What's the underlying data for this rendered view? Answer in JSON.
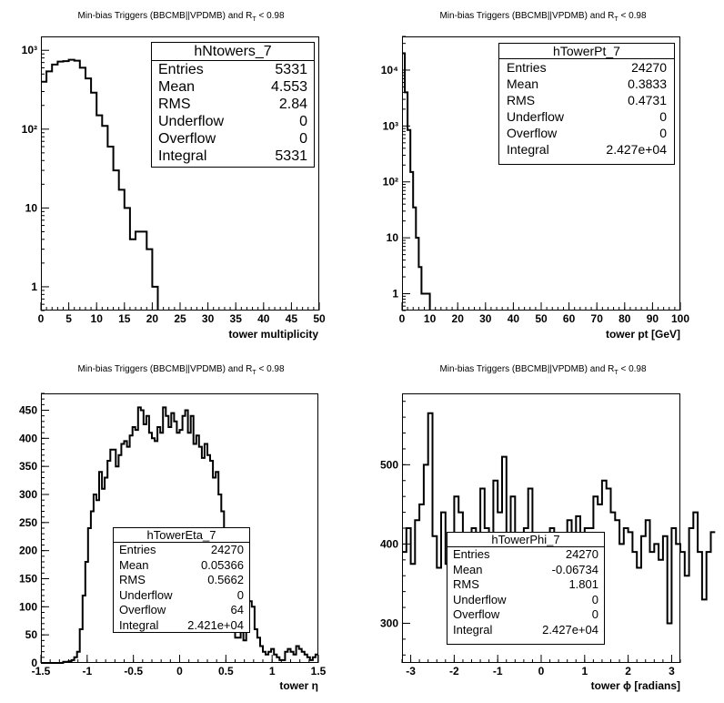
{
  "pads": [
    {
      "title": "Min-bias Triggers (BBCMB||VPDMB) and R",
      "title_sub": "T",
      "title_tail": " < 0.98",
      "xlabel": "tower multiplicity",
      "stats": {
        "name": "hNtowers_7",
        "rows": [
          {
            "label": "Entries",
            "value": "5331"
          },
          {
            "label": "Mean",
            "value": "4.553"
          },
          {
            "label": "RMS",
            "value": "2.84"
          },
          {
            "label": "Underflow",
            "value": "0"
          },
          {
            "label": "Overflow",
            "value": "0"
          },
          {
            "label": "Integral",
            "value": "5331"
          }
        ]
      }
    },
    {
      "title": "Min-bias Triggers (BBCMB||VPDMB) and R",
      "title_sub": "T",
      "title_tail": " < 0.98",
      "xlabel": "tower pt [GeV]",
      "stats": {
        "name": "hTowerPt_7",
        "rows": [
          {
            "label": "Entries",
            "value": "24270"
          },
          {
            "label": "Mean",
            "value": "0.3833"
          },
          {
            "label": "RMS",
            "value": "0.4731"
          },
          {
            "label": "Underflow",
            "value": "0"
          },
          {
            "label": "Overflow",
            "value": "0"
          },
          {
            "label": "Integral",
            "value": "2.427e+04"
          }
        ]
      }
    },
    {
      "title": "Min-bias Triggers (BBCMB||VPDMB) and R",
      "title_sub": "T",
      "title_tail": " < 0.98",
      "xlabel": "tower η",
      "stats": {
        "name": "hTowerEta_7",
        "rows": [
          {
            "label": "Entries",
            "value": "24270"
          },
          {
            "label": "Mean",
            "value": "0.05366"
          },
          {
            "label": "RMS",
            "value": "0.5662"
          },
          {
            "label": "Underflow",
            "value": "0"
          },
          {
            "label": "Overflow",
            "value": "64"
          },
          {
            "label": "Integral",
            "value": "2.421e+04"
          }
        ]
      }
    },
    {
      "title": "Min-bias Triggers (BBCMB||VPDMB) and R",
      "title_sub": "T",
      "title_tail": " < 0.98",
      "xlabel": "tower ϕ [radians]",
      "stats": {
        "name": "hTowerPhi_7",
        "rows": [
          {
            "label": "Entries",
            "value": "24270"
          },
          {
            "label": "Mean",
            "value": "-0.06734"
          },
          {
            "label": "RMS",
            "value": "1.801"
          },
          {
            "label": "Underflow",
            "value": "0"
          },
          {
            "label": "Overflow",
            "value": "0"
          },
          {
            "label": "Integral",
            "value": "2.427e+04"
          }
        ]
      }
    }
  ],
  "chart_data": [
    {
      "type": "histogram",
      "name": "hNtowers_7",
      "xlabel": "tower multiplicity",
      "xlim": [
        0,
        50
      ],
      "ylim": [
        0.5,
        1500
      ],
      "ylog": true,
      "xticks": [
        0,
        5,
        10,
        15,
        20,
        25,
        30,
        35,
        40,
        45,
        50
      ],
      "xtick_labels": [
        "0",
        "5",
        "10",
        "15",
        "20",
        "25",
        "30",
        "35",
        "40",
        "45",
        "50"
      ],
      "yticks": [
        1,
        10,
        100,
        1000
      ],
      "ytick_labels": [
        "1",
        "10",
        "10²",
        "10³"
      ],
      "bin_width": 1,
      "x0": 0,
      "values": [
        400,
        540,
        660,
        720,
        730,
        760,
        740,
        600,
        440,
        290,
        150,
        110,
        60,
        30,
        17,
        10,
        4,
        5,
        5,
        3,
        1
      ]
    },
    {
      "type": "histogram",
      "name": "hTowerPt_7",
      "xlabel": "tower pt [GeV]",
      "xlim": [
        0,
        100
      ],
      "ylim": [
        0.5,
        40000
      ],
      "ylog": true,
      "xticks": [
        0,
        10,
        20,
        30,
        40,
        50,
        60,
        70,
        80,
        90,
        100
      ],
      "xtick_labels": [
        "0",
        "10",
        "20",
        "30",
        "40",
        "50",
        "60",
        "70",
        "80",
        "90",
        "100"
      ],
      "yticks": [
        1,
        10,
        100,
        1000,
        10000
      ],
      "ytick_labels": [
        "1",
        "10",
        "10²",
        "10³",
        "10⁴"
      ],
      "bin_width": 1,
      "x0": 0,
      "values": [
        20000,
        4000,
        850,
        150,
        35,
        10,
        3,
        1,
        1,
        1
      ]
    },
    {
      "type": "histogram",
      "name": "hTowerEta_7",
      "xlabel": "tower η",
      "xlim": [
        -1.5,
        1.5
      ],
      "ylim": [
        0,
        480
      ],
      "ylog": false,
      "xticks": [
        -1.5,
        -1,
        -0.5,
        0,
        0.5,
        1,
        1.5
      ],
      "xtick_labels": [
        "-1.5",
        "-1",
        "-0.5",
        "0",
        "0.5",
        "1",
        "1.5"
      ],
      "yticks": [
        0,
        50,
        100,
        150,
        200,
        250,
        300,
        350,
        400,
        450
      ],
      "ytick_labels": [
        "0",
        "50",
        "100",
        "150",
        "200",
        "250",
        "300",
        "350",
        "400",
        "450"
      ],
      "bin_width": 0.03,
      "x0": -1.5,
      "values": [
        0,
        0,
        0,
        0,
        0,
        0,
        0,
        0,
        2,
        2,
        3,
        5,
        10,
        20,
        60,
        120,
        180,
        240,
        270,
        300,
        290,
        340,
        310,
        330,
        360,
        380,
        380,
        350,
        370,
        390,
        395,
        385,
        405,
        420,
        415,
        455,
        450,
        425,
        440,
        410,
        400,
        395,
        420,
        410,
        455,
        440,
        420,
        445,
        430,
        410,
        415,
        440,
        450,
        410,
        440,
        390,
        405,
        385,
        365,
        390,
        370,
        360,
        330,
        340,
        300,
        270,
        180,
        115,
        65,
        75,
        45,
        45,
        55,
        40,
        90,
        110,
        100,
        60,
        45,
        30,
        20,
        15,
        20,
        25,
        15,
        10,
        5,
        5,
        20,
        25,
        20,
        15,
        30,
        25,
        20,
        15,
        10,
        5,
        10,
        15
      ]
    },
    {
      "type": "histogram",
      "name": "hTowerPhi_7",
      "xlabel": "tower ϕ [radians]",
      "xlim": [
        -3.2,
        3.2
      ],
      "ylim": [
        250,
        590
      ],
      "ylog": false,
      "xticks": [
        -3,
        -2,
        -1,
        0,
        1,
        2,
        3
      ],
      "xtick_labels": [
        "-3",
        "-2",
        "-1",
        "0",
        "1",
        "2",
        "3"
      ],
      "yticks": [
        300,
        400,
        500
      ],
      "ytick_labels": [
        "300",
        "400",
        "500"
      ],
      "bin_width": 0.1,
      "x0": -3.2,
      "values": [
        390,
        420,
        375,
        430,
        450,
        500,
        565,
        410,
        370,
        440,
        375,
        410,
        460,
        440,
        375,
        385,
        420,
        380,
        470,
        420,
        370,
        480,
        440,
        510,
        410,
        460,
        400,
        360,
        420,
        470,
        380,
        320,
        390,
        375,
        420,
        375,
        400,
        330,
        430,
        405,
        435,
        400,
        420,
        420,
        460,
        450,
        480,
        470,
        440,
        430,
        400,
        420,
        415,
        390,
        370,
        410,
        430,
        390,
        400,
        380,
        410,
        300,
        420,
        400,
        390,
        360,
        420,
        440,
        390,
        330,
        390,
        415
      ]
    }
  ]
}
